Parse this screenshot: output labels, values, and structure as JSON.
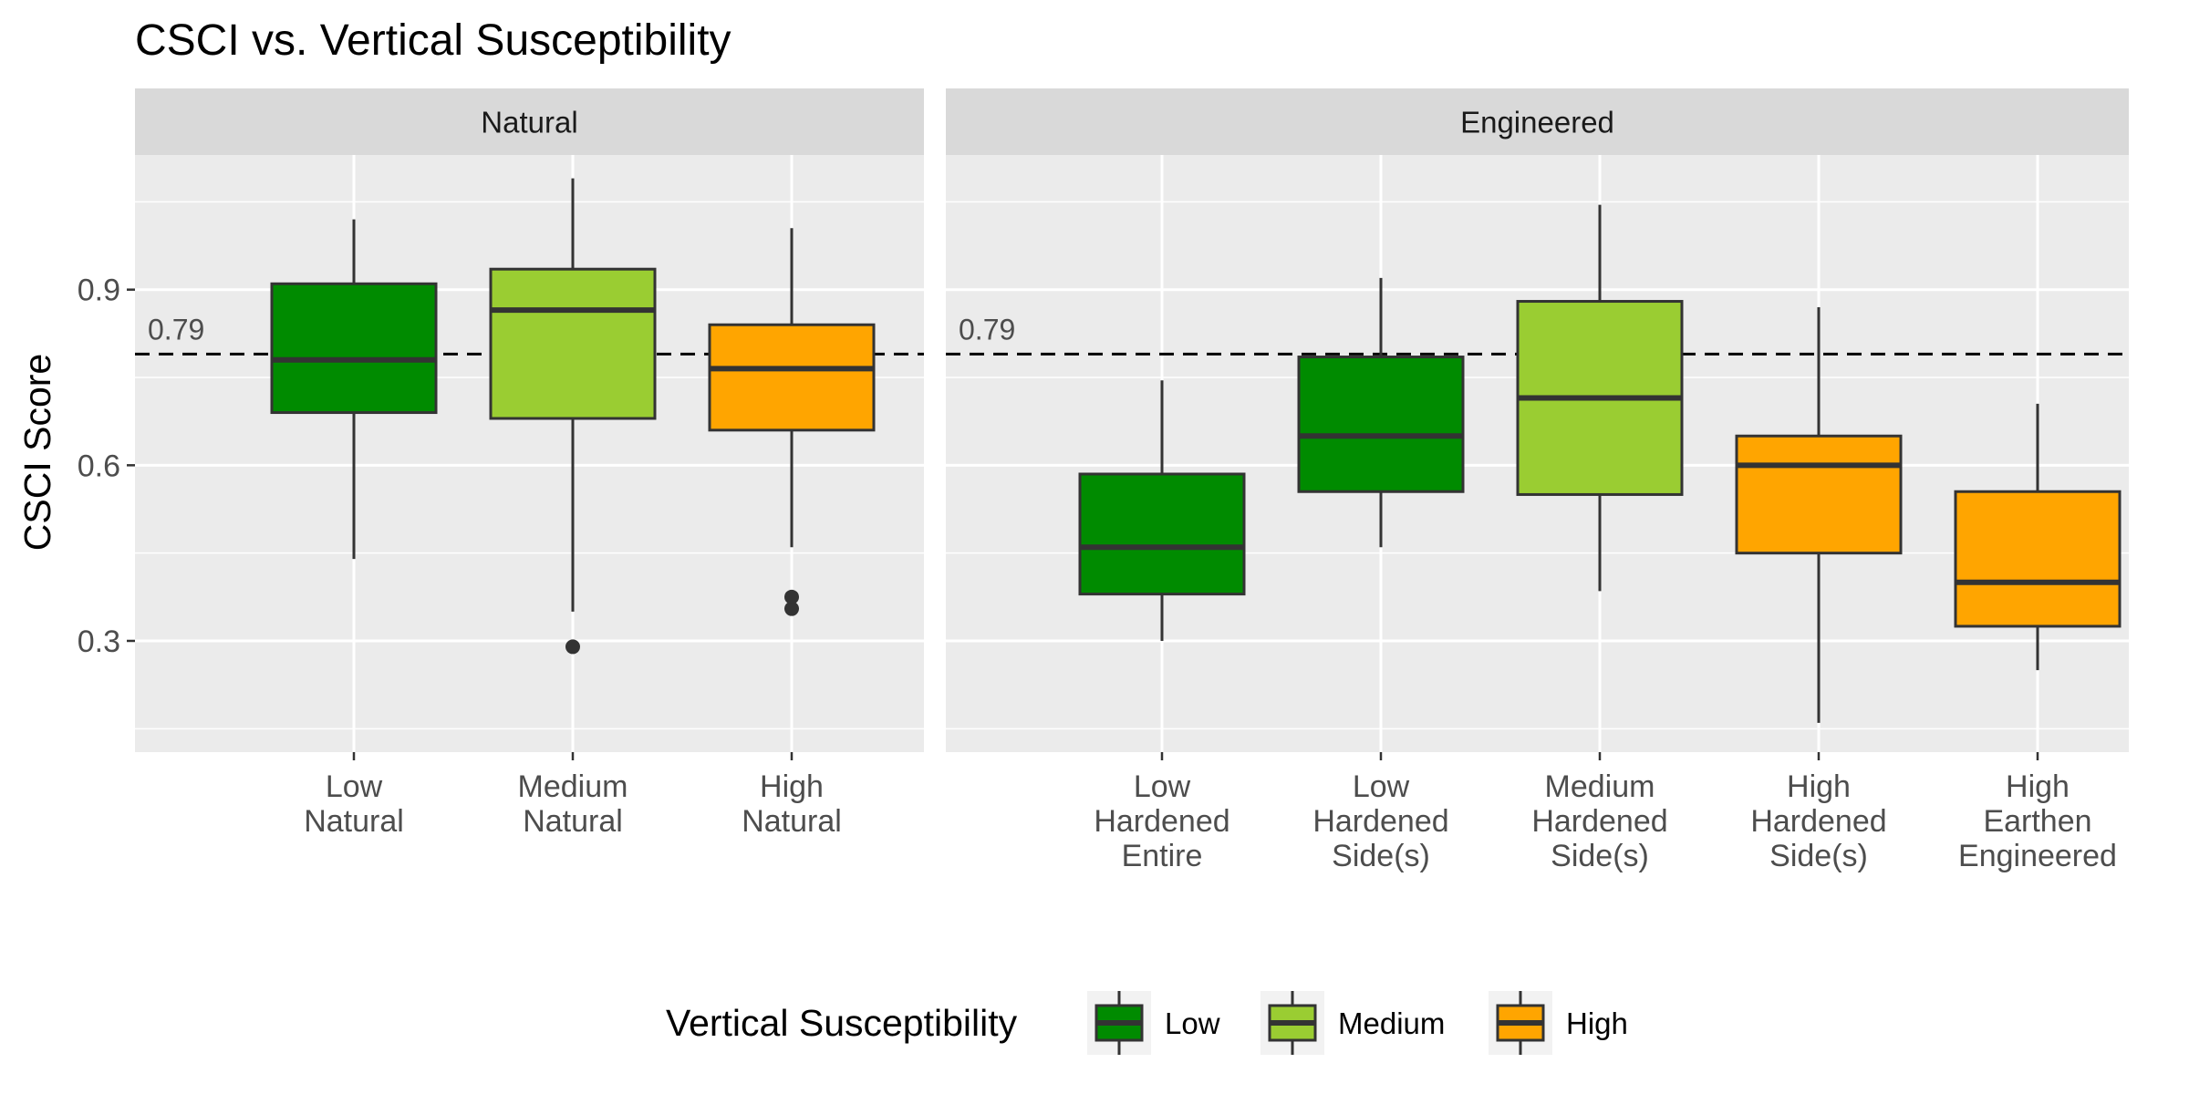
{
  "chart_data": {
    "type": "boxplot",
    "title": "CSCI vs. Vertical Susceptibility",
    "ylabel": "CSCI Score",
    "xlabel": "",
    "ylim": [
      0.11,
      1.13
    ],
    "yticks": [
      0.3,
      0.6,
      0.9
    ],
    "ytick_labels": [
      "0.3",
      "0.6",
      "0.9"
    ],
    "reference_line": {
      "value": 0.79,
      "label": "0.79",
      "style": "dashed"
    },
    "legend": {
      "title": "Vertical Susceptibility",
      "position": "bottom",
      "entries": [
        {
          "label": "Low",
          "color": "#008B00"
        },
        {
          "label": "Medium",
          "color": "#9ACD32"
        },
        {
          "label": "High",
          "color": "#FFA500"
        }
      ]
    },
    "panels": [
      {
        "label": "Natural",
        "boxes": [
          {
            "category": "Low\nNatural",
            "group": "Low",
            "whisker_low": 0.44,
            "q1": 0.69,
            "median": 0.78,
            "q3": 0.91,
            "whisker_high": 1.02,
            "outliers": []
          },
          {
            "category": "Medium\nNatural",
            "group": "Medium",
            "whisker_low": 0.35,
            "q1": 0.68,
            "median": 0.865,
            "q3": 0.935,
            "whisker_high": 1.09,
            "outliers": [
              0.29
            ]
          },
          {
            "category": "High\nNatural",
            "group": "High",
            "whisker_low": 0.46,
            "q1": 0.66,
            "median": 0.765,
            "q3": 0.84,
            "whisker_high": 1.005,
            "outliers": [
              0.355,
              0.375
            ]
          }
        ]
      },
      {
        "label": "Engineered",
        "boxes": [
          {
            "category": "Low\nHardened\nEntire",
            "group": "Low",
            "whisker_low": 0.3,
            "q1": 0.38,
            "median": 0.46,
            "q3": 0.585,
            "whisker_high": 0.745,
            "outliers": []
          },
          {
            "category": "Low\nHardened\nSide(s)",
            "group": "Low",
            "whisker_low": 0.46,
            "q1": 0.555,
            "median": 0.65,
            "q3": 0.785,
            "whisker_high": 0.92,
            "outliers": []
          },
          {
            "category": "Medium\nHardened\nSide(s)",
            "group": "Medium",
            "whisker_low": 0.385,
            "q1": 0.55,
            "median": 0.715,
            "q3": 0.88,
            "whisker_high": 1.045,
            "outliers": []
          },
          {
            "category": "High\nHardened\nSide(s)",
            "group": "High",
            "whisker_low": 0.16,
            "q1": 0.45,
            "median": 0.6,
            "q3": 0.65,
            "whisker_high": 0.87,
            "outliers": []
          },
          {
            "category": "High\nEarthen\nEngineered",
            "group": "High",
            "whisker_low": 0.25,
            "q1": 0.325,
            "median": 0.4,
            "q3": 0.555,
            "whisker_high": 0.705,
            "outliers": []
          }
        ]
      }
    ]
  }
}
